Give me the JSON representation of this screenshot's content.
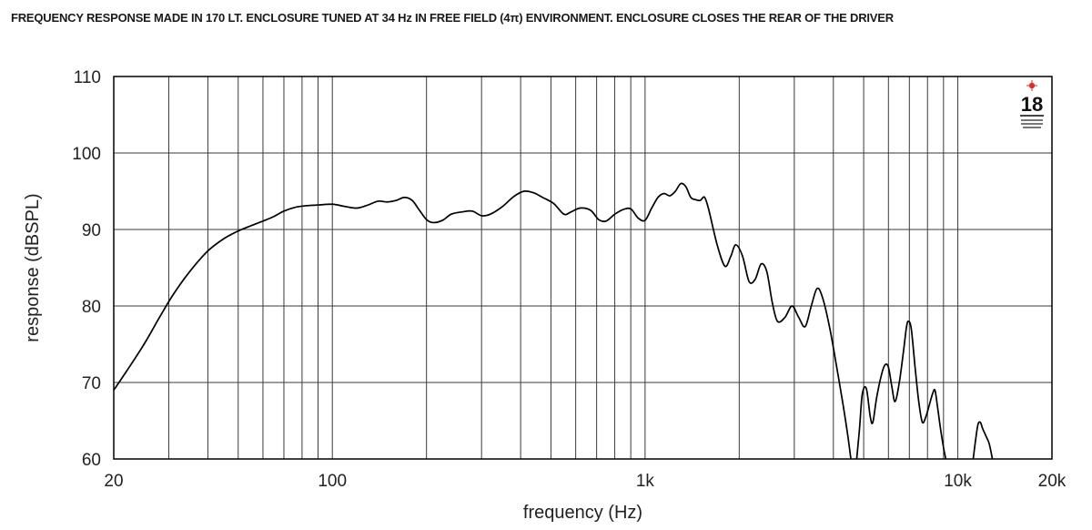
{
  "chart_data": {
    "type": "line",
    "title": "FREQUENCY RESPONSE MADE IN 170 LT. ENCLOSURE TUNED AT 34 Hz IN FREE FIELD (4π) ENVIRONMENT. ENCLOSURE CLOSES THE REAR OF THE DRIVER",
    "xlabel": "frequency (Hz)",
    "ylabel": "response (dBSPL)",
    "x_scale": "log",
    "xlim": [
      20,
      20000
    ],
    "ylim": [
      60,
      110
    ],
    "x_ticks": [
      {
        "value": 20,
        "label": "20"
      },
      {
        "value": 100,
        "label": "100"
      },
      {
        "value": 1000,
        "label": "1k"
      },
      {
        "value": 10000,
        "label": "10k"
      },
      {
        "value": 20000,
        "label": "20k"
      }
    ],
    "y_ticks": [
      {
        "value": 60,
        "label": "60"
      },
      {
        "value": 70,
        "label": "70"
      },
      {
        "value": 80,
        "label": "80"
      },
      {
        "value": 90,
        "label": "90"
      },
      {
        "value": 100,
        "label": "100"
      },
      {
        "value": 110,
        "label": "110"
      }
    ],
    "grid": true,
    "line_color": "#000000",
    "series": [
      {
        "name": "",
        "segments": [
          [
            [
              20,
              69
            ],
            [
              22,
              71.5
            ],
            [
              25,
              75
            ],
            [
              28,
              78.5
            ],
            [
              31,
              81.5
            ],
            [
              35,
              84.5
            ],
            [
              40,
              87.2
            ],
            [
              45,
              88.8
            ],
            [
              50,
              89.8
            ],
            [
              55,
              90.5
            ],
            [
              60,
              91.1
            ],
            [
              65,
              91.7
            ],
            [
              70,
              92.4
            ],
            [
              76,
              92.9
            ],
            [
              82,
              93.1
            ],
            [
              90,
              93.2
            ],
            [
              100,
              93.3
            ],
            [
              110,
              93.0
            ],
            [
              120,
              92.8
            ],
            [
              130,
              93.2
            ],
            [
              140,
              93.7
            ],
            [
              150,
              93.6
            ],
            [
              160,
              93.8
            ],
            [
              170,
              94.2
            ],
            [
              180,
              93.8
            ],
            [
              190,
              92.5
            ],
            [
              200,
              91.3
            ],
            [
              210,
              90.9
            ],
            [
              225,
              91.2
            ],
            [
              240,
              92.0
            ],
            [
              260,
              92.3
            ],
            [
              280,
              92.4
            ],
            [
              300,
              91.8
            ],
            [
              320,
              92.0
            ],
            [
              350,
              93.0
            ],
            [
              380,
              94.3
            ],
            [
              410,
              95.0
            ],
            [
              440,
              94.8
            ],
            [
              470,
              94.2
            ],
            [
              510,
              93.4
            ],
            [
              550,
              92.0
            ],
            [
              580,
              92.3
            ],
            [
              620,
              92.8
            ],
            [
              670,
              92.5
            ],
            [
              710,
              91.3
            ],
            [
              750,
              91.1
            ],
            [
              800,
              92.0
            ],
            [
              850,
              92.6
            ],
            [
              900,
              92.7
            ],
            [
              950,
              91.5
            ],
            [
              1000,
              91.2
            ],
            [
              1050,
              92.8
            ],
            [
              1100,
              94.2
            ],
            [
              1150,
              94.7
            ],
            [
              1200,
              94.4
            ],
            [
              1250,
              95.0
            ],
            [
              1300,
              96.0
            ],
            [
              1350,
              95.6
            ],
            [
              1400,
              94.2
            ],
            [
              1450,
              93.9
            ],
            [
              1500,
              93.8
            ],
            [
              1550,
              94.2
            ],
            [
              1600,
              92.5
            ],
            [
              1700,
              88
            ],
            [
              1800,
              85.2
            ],
            [
              1880,
              86.5
            ],
            [
              1950,
              88
            ],
            [
              2050,
              86.5
            ],
            [
              2150,
              83.2
            ],
            [
              2250,
              83.5
            ],
            [
              2350,
              85.5
            ],
            [
              2450,
              84.5
            ],
            [
              2550,
              80.5
            ],
            [
              2650,
              78
            ],
            [
              2800,
              78.5
            ],
            [
              2950,
              80
            ],
            [
              3100,
              78.5
            ],
            [
              3250,
              77.3
            ],
            [
              3400,
              80
            ],
            [
              3550,
              82.3
            ],
            [
              3700,
              81
            ],
            [
              3900,
              77
            ],
            [
              4100,
              72
            ],
            [
              4300,
              67
            ],
            [
              4450,
              63
            ],
            [
              4550,
              60
            ]
          ],
          [
            [
              4750,
              60
            ],
            [
              4850,
              64
            ],
            [
              4950,
              68.5
            ],
            [
              5100,
              69.2
            ],
            [
              5250,
              65.5
            ],
            [
              5350,
              64.8
            ],
            [
              5500,
              68
            ],
            [
              5700,
              71
            ],
            [
              5850,
              72.3
            ],
            [
              6000,
              72
            ],
            [
              6150,
              69.5
            ],
            [
              6300,
              67.5
            ],
            [
              6500,
              70
            ],
            [
              6700,
              74
            ],
            [
              6850,
              77.2
            ],
            [
              6950,
              78
            ],
            [
              7100,
              77
            ],
            [
              7300,
              72
            ],
            [
              7500,
              67.5
            ],
            [
              7700,
              64.8
            ],
            [
              7900,
              65.5
            ],
            [
              8100,
              67
            ],
            [
              8300,
              68.5
            ],
            [
              8450,
              69
            ],
            [
              8600,
              67
            ],
            [
              8800,
              64
            ],
            [
              9000,
              61.5
            ],
            [
              9150,
              60
            ]
          ],
          [
            [
              11200,
              60
            ],
            [
              11400,
              62.5
            ],
            [
              11600,
              64.5
            ],
            [
              11800,
              64.8
            ],
            [
              12000,
              64
            ],
            [
              12300,
              63
            ],
            [
              12600,
              62
            ],
            [
              12900,
              60
            ]
          ]
        ]
      }
    ]
  }
}
